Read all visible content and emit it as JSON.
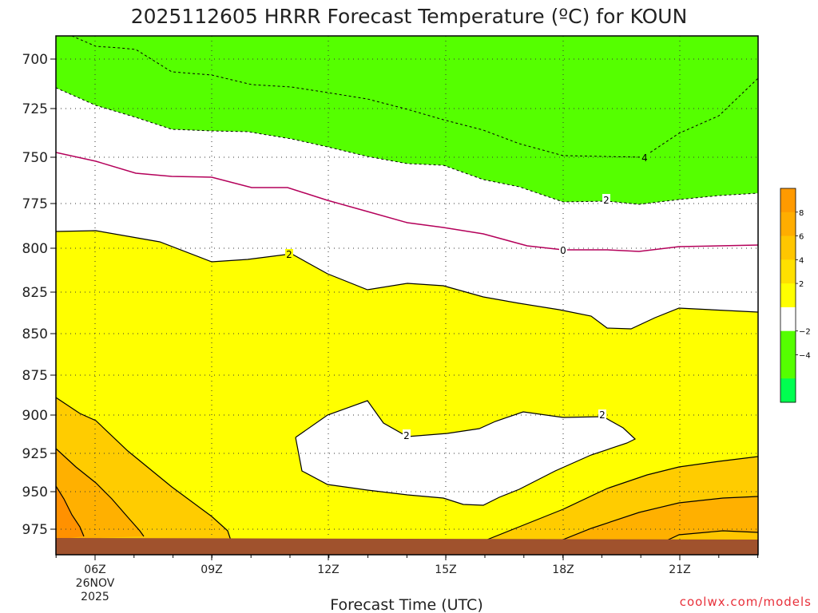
{
  "title": "2025112605 HRRR Forecast Temperature (ºC) for KOUN",
  "credit": "coolwx.com/models",
  "chart_data": {
    "type": "contour",
    "xlabel": "Forecast Time (UTC)",
    "ylabel": "",
    "y_axis": "pressure level (hPa), decreasing upward",
    "ylim": [
      986,
      692
    ],
    "xlim": [
      "2025-11-26 05:00Z",
      "2025-11-26 23:00Z"
    ],
    "y_ticks": [
      "700",
      "725",
      "750",
      "775",
      "800",
      "825",
      "850",
      "875",
      "900",
      "925",
      "950",
      "975"
    ],
    "x_ticks": [
      {
        "label": "06Z",
        "date_line": "26NOV",
        "year_line": "2025"
      },
      {
        "label": "09Z"
      },
      {
        "label": "12Z"
      },
      {
        "label": "15Z"
      },
      {
        "label": "18Z"
      },
      {
        "label": "21Z"
      }
    ],
    "grid": true,
    "contour_labels": [
      {
        "text": "4",
        "time_utc": "20Z",
        "pressure": 750
      },
      {
        "text": "2",
        "time_utc": "19Z",
        "pressure": 773
      },
      {
        "text": "0",
        "time_utc": "18Z",
        "pressure": 801
      },
      {
        "text": "2",
        "time_utc": "11Z",
        "pressure": 803
      },
      {
        "text": "2",
        "time_utc": "14Z",
        "pressure": 911
      },
      {
        "text": "2",
        "time_utc": "19Z",
        "pressure": 900
      }
    ],
    "colorbar": {
      "ticks": [
        "8",
        "6",
        "4",
        "2",
        "−2",
        "−4"
      ],
      "colors": [
        "#ff9a00",
        "#ffad00",
        "#ffc600",
        "#ffe000",
        "#ffff00",
        "#ffffff",
        "#55ff00",
        "#55ff00",
        "#00ff50"
      ]
    },
    "colors": {
      "green_lt_minus2": "#55ff00",
      "white_minus2_to_2": "#ffffff",
      "yellow_2_to_4": "#ffff00",
      "orange_4_to_6": "#ffcc00",
      "orange_6_to_8": "#ffb000",
      "orange_gt_8": "#ff9100",
      "zero_line": "#b4005a",
      "ground": "#a0522d"
    }
  }
}
